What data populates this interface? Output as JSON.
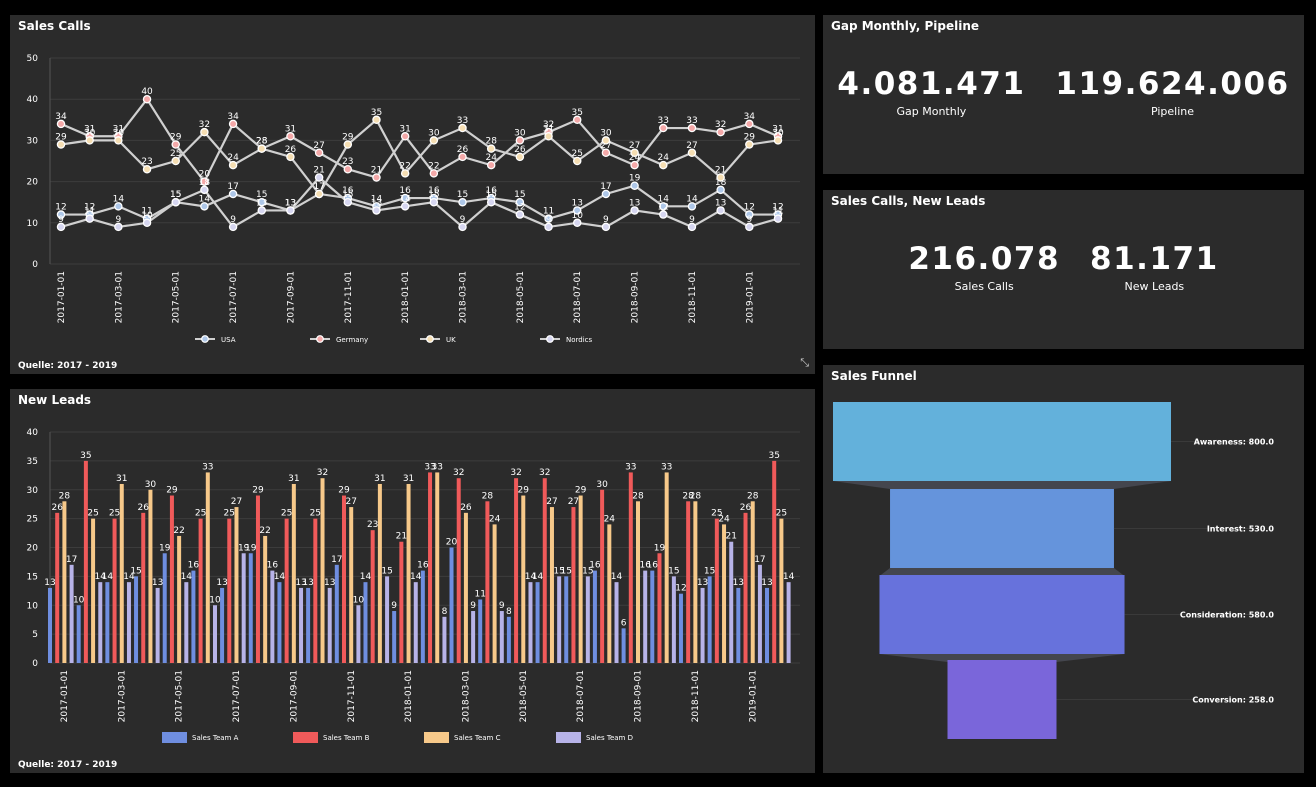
{
  "panels": {
    "sales_calls": {
      "title": "Sales Calls",
      "footer": "Quelle: 2017 - 2019"
    },
    "new_leads": {
      "title": "New Leads",
      "footer": "Quelle: 2017 - 2019"
    },
    "gap_pipeline": {
      "title": "Gap Monthly, Pipeline"
    },
    "calls_leads": {
      "title": "Sales Calls, New Leads"
    },
    "funnel": {
      "title": "Sales Funnel"
    }
  },
  "kpis": {
    "gap_monthly": {
      "value": "4.081.471",
      "label": "Gap Monthly"
    },
    "pipeline": {
      "value": "119.624.006",
      "label": "Pipeline"
    },
    "sales_calls": {
      "value": "216.078",
      "label": "Sales Calls"
    },
    "new_leads": {
      "value": "81.171",
      "label": "New Leads"
    }
  },
  "chart_data": [
    {
      "id": "sales_calls",
      "type": "line",
      "title": "Sales Calls",
      "ylim": [
        0,
        50
      ],
      "yticks": [
        0,
        10,
        20,
        30,
        40,
        50
      ],
      "xticks": [
        "2017-01-01",
        "2017-03-01",
        "2017-05-01",
        "2017-07-01",
        "2017-09-01",
        "2017-11-01",
        "2018-01-01",
        "2018-03-01",
        "2018-05-01",
        "2018-07-01",
        "2018-09-01",
        "2018-11-01",
        "2019-01-01"
      ],
      "x_count": 26,
      "legend_position": "bottom",
      "series": [
        {
          "name": "USA",
          "color": "#aec7e8",
          "values": [
            12,
            12,
            14,
            11,
            15,
            14,
            17,
            15,
            13,
            17,
            16,
            14,
            16,
            16,
            15,
            16,
            15,
            11,
            13,
            17,
            19,
            14,
            14,
            18,
            12,
            12
          ]
        },
        {
          "name": "Germany",
          "color": "#f4a9a9",
          "values": [
            34,
            31,
            31,
            40,
            29,
            20,
            34,
            28,
            31,
            27,
            23,
            21,
            31,
            22,
            26,
            24,
            30,
            32,
            35,
            27,
            24,
            33,
            33,
            32,
            34,
            31
          ]
        },
        {
          "name": "UK",
          "color": "#f5deb3",
          "values": [
            29,
            30,
            30,
            23,
            25,
            32,
            24,
            28,
            26,
            17,
            29,
            35,
            22,
            30,
            33,
            28,
            26,
            31,
            25,
            30,
            27,
            24,
            27,
            21,
            29,
            30
          ]
        },
        {
          "name": "Nordics",
          "color": "#d6d6f0",
          "values": [
            9,
            11,
            9,
            10,
            15,
            18,
            9,
            13,
            13,
            21,
            15,
            13,
            14,
            15,
            9,
            15,
            12,
            9,
            10,
            9,
            13,
            12,
            9,
            13,
            9,
            11
          ]
        }
      ]
    },
    {
      "id": "new_leads",
      "type": "bar",
      "title": "New Leads",
      "ylim": [
        0,
        40
      ],
      "yticks": [
        0,
        5,
        10,
        15,
        20,
        25,
        30,
        35,
        40
      ],
      "xticks": [
        "2017-01-01",
        "2017-03-01",
        "2017-05-01",
        "2017-07-01",
        "2017-09-01",
        "2017-11-01",
        "2018-01-01",
        "2018-03-01",
        "2018-05-01",
        "2018-07-01",
        "2018-09-01",
        "2018-11-01",
        "2019-01-01"
      ],
      "legend_position": "bottom",
      "series": [
        {
          "name": "Sales Team A",
          "color": "#6f8ee0",
          "values": [
            13,
            10,
            14,
            15,
            19,
            16,
            13,
            19,
            14,
            13,
            17,
            14,
            9,
            16,
            20,
            11,
            8,
            14,
            15,
            16,
            6,
            16,
            12,
            15,
            13,
            13
          ]
        },
        {
          "name": "Sales Team B",
          "color": "#f05a5a",
          "values": [
            26,
            35,
            25,
            26,
            29,
            25,
            25,
            29,
            25,
            25,
            29,
            23,
            21,
            33,
            32,
            28,
            32,
            32,
            27,
            30,
            33,
            19,
            28,
            25,
            26,
            35
          ]
        },
        {
          "name": "Sales Team C",
          "color": "#f7c98a",
          "values": [
            28,
            25,
            31,
            30,
            22,
            33,
            27,
            22,
            31,
            32,
            27,
            31,
            31,
            33,
            26,
            24,
            29,
            27,
            29,
            24,
            28,
            33,
            28,
            24,
            28,
            25
          ]
        },
        {
          "name": "Sales Team D",
          "color": "#b7b3e8",
          "values": [
            17,
            14,
            14,
            13,
            14,
            10,
            19,
            16,
            13,
            13,
            10,
            15,
            14,
            8,
            9,
            9,
            14,
            15,
            15,
            14,
            16,
            15,
            13,
            21,
            17,
            14
          ]
        }
      ]
    },
    {
      "id": "sales_funnel",
      "type": "funnel",
      "title": "Sales Funnel",
      "stages": [
        {
          "name": "Awareness",
          "value": 800.0,
          "label": "Awareness: 800.0",
          "color": "#63b1db"
        },
        {
          "name": "Interest",
          "value": 530.0,
          "label": "Interest: 530.0",
          "color": "#6594dc"
        },
        {
          "name": "Consideration",
          "value": 580.0,
          "label": "Consideration: 580.0",
          "color": "#6772dc"
        },
        {
          "name": "Conversion",
          "value": 258.0,
          "label": "Conversion: 258.0",
          "color": "#7a66da"
        }
      ]
    }
  ]
}
